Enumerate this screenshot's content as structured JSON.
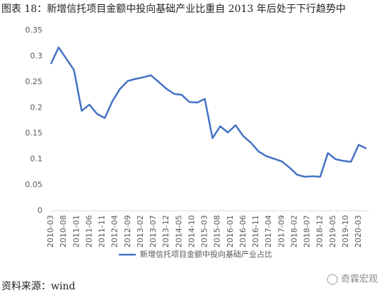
{
  "title": "图表 18：新增信托项目金额中投向基础产业比重自 2013 年后处于下行趋势中",
  "chart_data": {
    "type": "line",
    "x": [
      "2010-03",
      "2010-06",
      "2010-09",
      "2010-12",
      "2011-03",
      "2011-06",
      "2011-09",
      "2011-12",
      "2012-03",
      "2012-06",
      "2012-09",
      "2012-12",
      "2013-03",
      "2013-06",
      "2013-09",
      "2013-12",
      "2014-03",
      "2014-06",
      "2014-09",
      "2014-12",
      "2015-03",
      "2015-06",
      "2015-09",
      "2015-12",
      "2016-03",
      "2016-06",
      "2016-09",
      "2016-12",
      "2017-03",
      "2017-06",
      "2017-09",
      "2017-12",
      "2018-03",
      "2018-06",
      "2018-09",
      "2018-12",
      "2019-03",
      "2019-06",
      "2019-09",
      "2019-12",
      "2020-03",
      "2020-06"
    ],
    "series": [
      {
        "name": "新增信托项目金额中投向基础产业占比",
        "color": "#4472c4",
        "values": [
          0.285,
          0.317,
          0.295,
          0.273,
          0.194,
          0.206,
          0.188,
          0.18,
          0.213,
          0.237,
          0.252,
          0.256,
          0.259,
          0.263,
          0.25,
          0.237,
          0.227,
          0.225,
          0.211,
          0.21,
          0.217,
          0.141,
          0.164,
          0.152,
          0.166,
          0.145,
          0.132,
          0.115,
          0.106,
          0.101,
          0.096,
          0.084,
          0.07,
          0.066,
          0.067,
          0.066,
          0.112,
          0.1,
          0.097,
          0.095,
          0.128,
          0.121
        ]
      }
    ],
    "xlim": [
      "2010-03",
      "2020-06"
    ],
    "xticks": [
      "2010-03",
      "2010-08",
      "2011-01",
      "2011-06",
      "2011-11",
      "2012-04",
      "2012-09",
      "2013-02",
      "2013-07",
      "2013-12",
      "2014-05",
      "2014-10",
      "2015-03",
      "2015-08",
      "2016-01",
      "2016-06",
      "2016-11",
      "2017-04",
      "2017-09",
      "2018-02",
      "2018-07",
      "2018-12",
      "2019-05",
      "2019-10",
      "2020-03"
    ],
    "ylim": [
      0,
      0.35
    ],
    "yticks": [
      0,
      0.05,
      0.1,
      0.15,
      0.2,
      0.25,
      0.3,
      0.35
    ],
    "grid": false,
    "legend": "bottom"
  },
  "source": "资料来源：wind",
  "watermark": "奇霖宏观"
}
